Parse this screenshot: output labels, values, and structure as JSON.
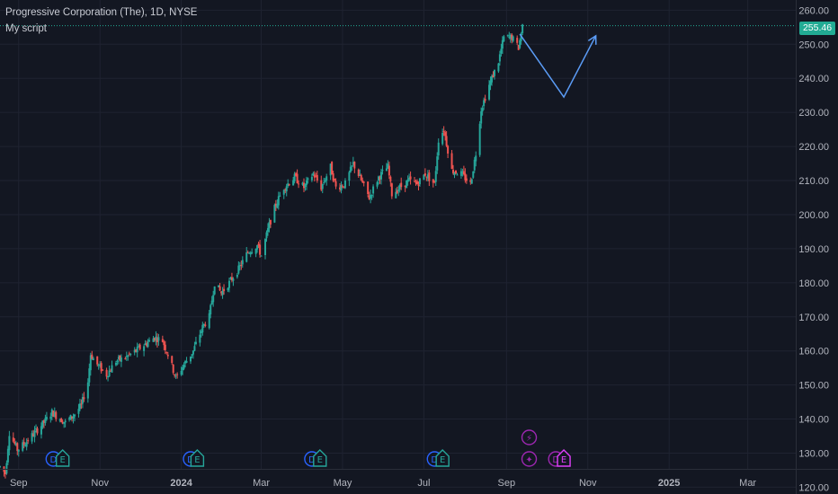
{
  "header": {
    "title": "Progressive Corporation (The), 1D, NYSE",
    "script_name": "My script"
  },
  "last_price_label": "255.46",
  "colors": {
    "background": "#131722",
    "grid": "#1f2331",
    "up": "#26a69a",
    "down": "#ef5350",
    "price_line": "#22ab94",
    "projection": "#5b9cf6",
    "event_blue": "#2962ff",
    "event_green": "#26a69a",
    "event_purple": "#9c27b0",
    "event_magenta": "#e040fb"
  },
  "events": [
    {
      "x": "2023-09-27",
      "letter": "D",
      "color": "blue"
    },
    {
      "x": "2023-10-04",
      "letter": "E",
      "color": "green"
    },
    {
      "x": "2024-01-08",
      "letter": "D",
      "color": "blue"
    },
    {
      "x": "2024-01-13",
      "letter": "E",
      "color": "green"
    },
    {
      "x": "2024-04-08",
      "letter": "D",
      "color": "blue"
    },
    {
      "x": "2024-04-14",
      "letter": "E",
      "color": "green"
    },
    {
      "x": "2024-07-09",
      "letter": "D",
      "color": "blue"
    },
    {
      "x": "2024-07-15",
      "letter": "E",
      "color": "green"
    },
    {
      "x": "2024-09-18",
      "letter": "⚡",
      "color": "purple",
      "row": 1
    },
    {
      "x": "2024-09-18",
      "letter": "✦",
      "color": "purple"
    },
    {
      "x": "2024-10-08",
      "letter": "D",
      "color": "purple"
    },
    {
      "x": "2024-10-14",
      "letter": "E",
      "color": "magenta"
    }
  ],
  "chart_data": {
    "type": "candlestick",
    "title": "Progressive Corporation (The), 1D, NYSE",
    "ylim": [
      118,
      263
    ],
    "y_ticks": [
      120,
      130,
      140,
      150,
      160,
      170,
      180,
      190,
      200,
      210,
      220,
      230,
      240,
      250,
      260
    ],
    "y_tick_labels": [
      "120.00",
      "130.00",
      "140.00",
      "150.00",
      "160.00",
      "170.00",
      "180.00",
      "190.00",
      "200.00",
      "210.00",
      "220.00",
      "230.00",
      "240.00",
      "250.00",
      "260.00"
    ],
    "x_range": [
      "2023-08-18",
      "2025-04-06"
    ],
    "x_ticks": [
      {
        "date": "2023-09-01",
        "label": "Sep"
      },
      {
        "date": "2023-11-01",
        "label": "Nov"
      },
      {
        "date": "2024-01-01",
        "label": "2024"
      },
      {
        "date": "2024-03-01",
        "label": "Mar"
      },
      {
        "date": "2024-05-01",
        "label": "May"
      },
      {
        "date": "2024-07-01",
        "label": "Jul"
      },
      {
        "date": "2024-09-01",
        "label": "Sep"
      },
      {
        "date": "2024-11-01",
        "label": "Nov"
      },
      {
        "date": "2025-01-01",
        "label": "2025"
      },
      {
        "date": "2025-03-01",
        "label": "Mar"
      }
    ],
    "price_path": [
      [
        "2023-08-18",
        126
      ],
      [
        "2023-08-22",
        124
      ],
      [
        "2023-08-25",
        136
      ],
      [
        "2023-08-31",
        131
      ],
      [
        "2023-09-06",
        133
      ],
      [
        "2023-09-13",
        136
      ],
      [
        "2023-09-20",
        139
      ],
      [
        "2023-09-26",
        142
      ],
      [
        "2023-09-29",
        141
      ],
      [
        "2023-10-06",
        139
      ],
      [
        "2023-10-12",
        141
      ],
      [
        "2023-10-18",
        144
      ],
      [
        "2023-10-23",
        151
      ],
      [
        "2023-10-25",
        159
      ],
      [
        "2023-10-30",
        156
      ],
      [
        "2023-11-06",
        153
      ],
      [
        "2023-11-13",
        157
      ],
      [
        "2023-11-20",
        158
      ],
      [
        "2023-11-28",
        160
      ],
      [
        "2023-12-05",
        162
      ],
      [
        "2023-12-12",
        164
      ],
      [
        "2023-12-18",
        163
      ],
      [
        "2023-12-22",
        159
      ],
      [
        "2023-12-28",
        152
      ],
      [
        "2024-01-03",
        156
      ],
      [
        "2024-01-10",
        160
      ],
      [
        "2024-01-17",
        167
      ],
      [
        "2024-01-22",
        170
      ],
      [
        "2024-01-26",
        180
      ],
      [
        "2024-01-31",
        177
      ],
      [
        "2024-02-06",
        180
      ],
      [
        "2024-02-13",
        184
      ],
      [
        "2024-02-20",
        189
      ],
      [
        "2024-02-27",
        191
      ],
      [
        "2024-03-01",
        188
      ],
      [
        "2024-03-07",
        197
      ],
      [
        "2024-03-12",
        203
      ],
      [
        "2024-03-18",
        208
      ],
      [
        "2024-03-26",
        211
      ],
      [
        "2024-04-02",
        208
      ],
      [
        "2024-04-09",
        212
      ],
      [
        "2024-04-15",
        208
      ],
      [
        "2024-04-22",
        214
      ],
      [
        "2024-04-26",
        208
      ],
      [
        "2024-05-03",
        209
      ],
      [
        "2024-05-09",
        215
      ],
      [
        "2024-05-15",
        210
      ],
      [
        "2024-05-21",
        205
      ],
      [
        "2024-05-28",
        211
      ],
      [
        "2024-06-04",
        214
      ],
      [
        "2024-06-07",
        206
      ],
      [
        "2024-06-13",
        208
      ],
      [
        "2024-06-20",
        210
      ],
      [
        "2024-06-26",
        209
      ],
      [
        "2024-07-02",
        212
      ],
      [
        "2024-07-09",
        209
      ],
      [
        "2024-07-12",
        222
      ],
      [
        "2024-07-16",
        225
      ],
      [
        "2024-07-22",
        213
      ],
      [
        "2024-07-29",
        212
      ],
      [
        "2024-08-05",
        209
      ],
      [
        "2024-08-09",
        218
      ],
      [
        "2024-08-13",
        231
      ],
      [
        "2024-08-19",
        238
      ],
      [
        "2024-08-26",
        245
      ],
      [
        "2024-08-30",
        252
      ],
      [
        "2024-09-05",
        252
      ],
      [
        "2024-09-10",
        249
      ],
      [
        "2024-09-13",
        255.46
      ]
    ],
    "last_price": 255.46,
    "projection": [
      {
        "date": "2024-09-11",
        "value": 253
      },
      {
        "date": "2024-10-14",
        "value": 234.5
      },
      {
        "date": "2024-11-07",
        "value": 252.5
      }
    ]
  }
}
